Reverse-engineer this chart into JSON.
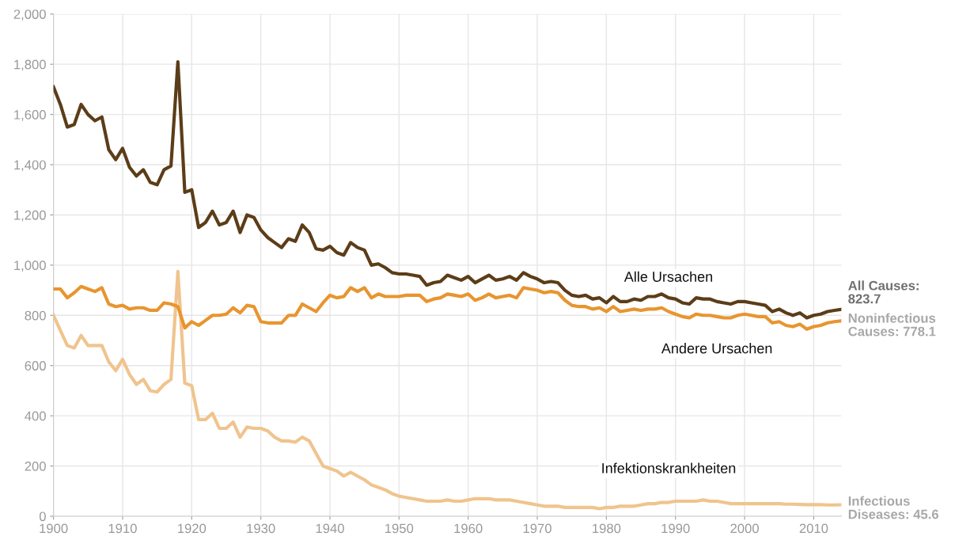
{
  "chart_data": {
    "type": "line",
    "x": [
      1900,
      1901,
      1902,
      1903,
      1904,
      1905,
      1906,
      1907,
      1908,
      1909,
      1910,
      1911,
      1912,
      1913,
      1914,
      1915,
      1916,
      1917,
      1918,
      1919,
      1920,
      1921,
      1922,
      1923,
      1924,
      1925,
      1926,
      1927,
      1928,
      1929,
      1930,
      1931,
      1932,
      1933,
      1934,
      1935,
      1936,
      1937,
      1938,
      1939,
      1940,
      1941,
      1942,
      1943,
      1944,
      1945,
      1946,
      1947,
      1948,
      1949,
      1950,
      1951,
      1952,
      1953,
      1954,
      1955,
      1956,
      1957,
      1958,
      1959,
      1960,
      1961,
      1962,
      1963,
      1964,
      1965,
      1966,
      1967,
      1968,
      1969,
      1970,
      1971,
      1972,
      1973,
      1974,
      1975,
      1976,
      1977,
      1978,
      1979,
      1980,
      1981,
      1982,
      1983,
      1984,
      1985,
      1986,
      1987,
      1988,
      1989,
      1990,
      1991,
      1992,
      1993,
      1994,
      1995,
      1996,
      1997,
      1998,
      1999,
      2000,
      2001,
      2002,
      2003,
      2004,
      2005,
      2006,
      2007,
      2008,
      2009,
      2010,
      2011,
      2012,
      2013,
      2014
    ],
    "series": [
      {
        "name": "Alle Ursachen",
        "color": "#5c3d18",
        "values": [
          1710,
          1640,
          1550,
          1560,
          1640,
          1600,
          1575,
          1590,
          1460,
          1420,
          1465,
          1390,
          1355,
          1380,
          1330,
          1320,
          1380,
          1395,
          1810,
          1290,
          1300,
          1150,
          1170,
          1215,
          1160,
          1170,
          1215,
          1130,
          1200,
          1190,
          1140,
          1110,
          1090,
          1070,
          1105,
          1095,
          1160,
          1130,
          1065,
          1060,
          1075,
          1050,
          1040,
          1090,
          1070,
          1060,
          1000,
          1005,
          990,
          970,
          965,
          965,
          960,
          955,
          920,
          930,
          935,
          960,
          950,
          940,
          955,
          930,
          945,
          960,
          940,
          945,
          955,
          940,
          970,
          955,
          945,
          930,
          935,
          930,
          900,
          880,
          875,
          880,
          865,
          870,
          850,
          875,
          855,
          855,
          865,
          860,
          875,
          875,
          885,
          870,
          865,
          850,
          845,
          870,
          865,
          865,
          855,
          850,
          845,
          855,
          855,
          850,
          845,
          840,
          815,
          825,
          810,
          800,
          810,
          790,
          800,
          805,
          815,
          820,
          823.7
        ]
      },
      {
        "name": "Andere Ursachen",
        "color": "#e8952f",
        "values": [
          905,
          905,
          870,
          890,
          915,
          905,
          895,
          910,
          845,
          835,
          840,
          825,
          830,
          830,
          820,
          820,
          850,
          845,
          835,
          750,
          775,
          760,
          780,
          800,
          800,
          805,
          830,
          810,
          840,
          835,
          775,
          770,
          770,
          770,
          800,
          800,
          845,
          830,
          815,
          850,
          880,
          870,
          875,
          910,
          895,
          910,
          870,
          885,
          875,
          875,
          875,
          880,
          880,
          880,
          855,
          865,
          870,
          885,
          880,
          875,
          885,
          860,
          870,
          885,
          870,
          875,
          880,
          870,
          910,
          905,
          900,
          890,
          895,
          890,
          860,
          840,
          835,
          835,
          825,
          830,
          815,
          835,
          815,
          820,
          825,
          820,
          825,
          825,
          830,
          815,
          805,
          795,
          790,
          805,
          800,
          800,
          795,
          790,
          790,
          800,
          805,
          800,
          795,
          795,
          770,
          775,
          760,
          755,
          765,
          745,
          755,
          760,
          770,
          775,
          778.1
        ]
      },
      {
        "name": "Infektionskrankheiten",
        "color": "#f0c48e",
        "values": [
          800,
          740,
          680,
          670,
          720,
          680,
          680,
          680,
          615,
          580,
          625,
          565,
          525,
          545,
          500,
          495,
          525,
          545,
          975,
          530,
          520,
          385,
          385,
          410,
          350,
          350,
          375,
          315,
          355,
          350,
          350,
          340,
          315,
          300,
          300,
          295,
          315,
          300,
          250,
          200,
          190,
          180,
          160,
          175,
          160,
          145,
          125,
          115,
          105,
          90,
          80,
          75,
          70,
          65,
          60,
          60,
          60,
          65,
          60,
          60,
          65,
          70,
          70,
          70,
          65,
          65,
          65,
          60,
          55,
          50,
          45,
          40,
          40,
          40,
          35,
          35,
          35,
          35,
          35,
          30,
          35,
          35,
          40,
          40,
          40,
          45,
          50,
          50,
          55,
          55,
          60,
          60,
          60,
          60,
          65,
          60,
          60,
          55,
          50,
          50,
          50,
          50,
          50,
          50,
          50,
          50,
          48,
          48,
          47,
          46,
          46,
          46,
          45,
          45,
          45.6
        ]
      }
    ],
    "annotations": [
      "All Causes: 823.7",
      "Noninfectious Causes: 778.1",
      "Infectious Diseases: 45.6"
    ],
    "xlim": [
      1900,
      2014
    ],
    "xticks": [
      1900,
      1910,
      1920,
      1930,
      1940,
      1950,
      1960,
      1970,
      1980,
      1990,
      2000,
      2010
    ],
    "ylim": [
      0,
      2000
    ],
    "yticks": [
      0,
      200,
      400,
      600,
      800,
      {
        "value": 1000,
        "label": "1,000"
      },
      {
        "value": 1200,
        "label": "1,200"
      },
      {
        "value": 1400,
        "label": "1,400"
      },
      {
        "value": 1600,
        "label": "1,600"
      },
      {
        "value": 1800,
        "label": "1,800"
      },
      {
        "value": 2000,
        "label": "2,000"
      }
    ],
    "grid": true,
    "marker": "none",
    "line_style": "solid",
    "legend": false
  }
}
